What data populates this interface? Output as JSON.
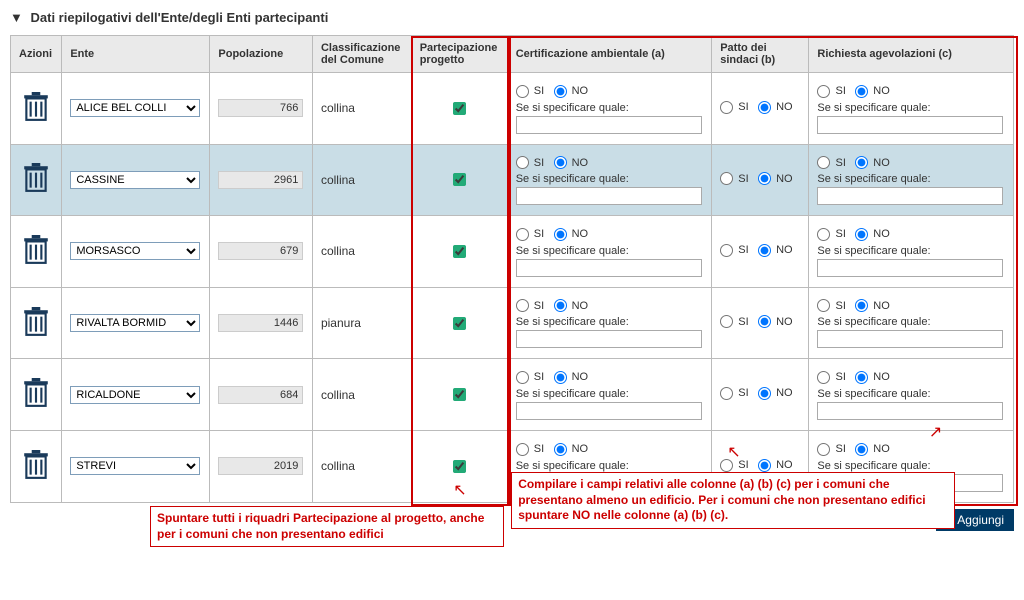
{
  "section_title": "Dati riepilogativi dell'Ente/degli Enti partecipanti",
  "columns": {
    "azioni": "Azioni",
    "ente": "Ente",
    "popolazione": "Popolazione",
    "classificazione": "Classificazione del Comune",
    "partecipazione": "Partecipazione progetto",
    "certificazione": "Certificazione ambientale (a)",
    "patto": "Patto dei sindaci (b)",
    "richiesta": "Richiesta agevolazioni (c)"
  },
  "radio_labels": {
    "si": "SI",
    "no": "NO"
  },
  "spec_label": "Se si specificare quale:",
  "rows": [
    {
      "ente": "ALICE BEL COLLI",
      "pop": "766",
      "class": "collina",
      "alt": false
    },
    {
      "ente": "CASSINE",
      "pop": "2961",
      "class": "collina",
      "alt": true
    },
    {
      "ente": "MORSASCO",
      "pop": "679",
      "class": "collina",
      "alt": false
    },
    {
      "ente": "RIVALTA BORMID",
      "pop": "1446",
      "class": "pianura",
      "alt": false
    },
    {
      "ente": "RICALDONE",
      "pop": "684",
      "class": "collina",
      "alt": false
    },
    {
      "ente": "STREVI",
      "pop": "2019",
      "class": "collina",
      "alt": false
    }
  ],
  "annotation_left": "Spuntare tutti i riquadri Partecipazione al progetto, anche per i comuni che non presentano edifici",
  "annotation_right": "Compilare i campi relativi alle colonne (a) (b) (c) per i comuni che presentano almeno un edificio. Per i comuni che non presentano edifici spuntare NO nelle colonne (a) (b) (c).",
  "add_button": "Aggiungi",
  "colors": {
    "header_bg": "#eaeaea",
    "alt_row_bg": "#c9dde6",
    "border": "#bbbbbb",
    "annotation": "#cc0000",
    "button_bg": "#003a66",
    "trash": "#1a3a5a"
  }
}
